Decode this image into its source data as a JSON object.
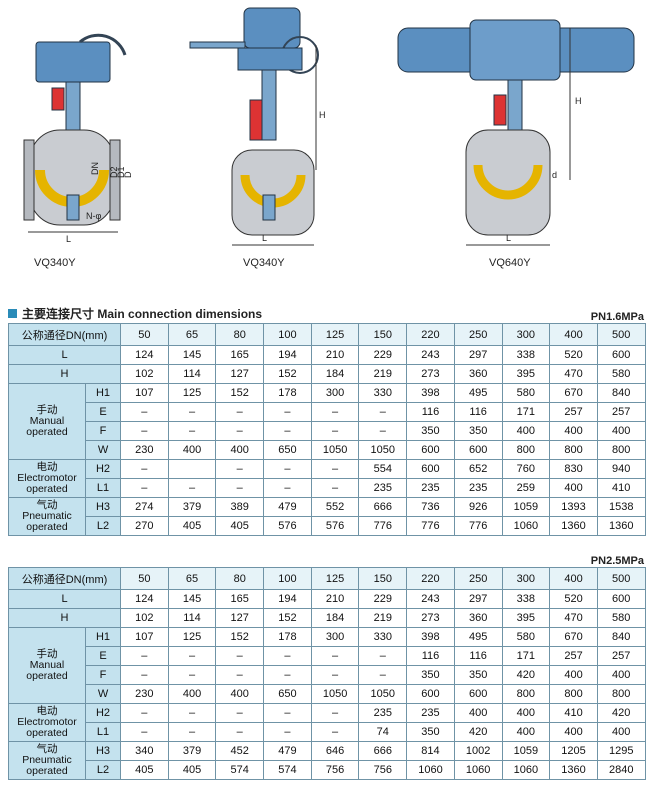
{
  "drawings": [
    {
      "caption": "VQ340Y",
      "labels": [
        "DN",
        "D2",
        "D1",
        "D",
        "L",
        "N-φ"
      ]
    },
    {
      "caption": "VQ340Y",
      "labels": [
        "H",
        "L"
      ]
    },
    {
      "caption": "VQ640Y",
      "labels": [
        "H",
        "d",
        "L"
      ]
    }
  ],
  "section": {
    "title_cn": "主要连接尺寸",
    "title_en": "Main connection dimensions"
  },
  "tables": [
    {
      "pressure": "PN1.6MPa",
      "header": "公称通径DN(mm)",
      "dn": [
        50,
        65,
        80,
        100,
        125,
        150,
        220,
        250,
        300,
        400,
        500
      ],
      "rows": [
        {
          "label": "L",
          "values": [
            124,
            145,
            165,
            194,
            210,
            229,
            243,
            297,
            338,
            520,
            600
          ]
        },
        {
          "label": "H",
          "values": [
            102,
            114,
            127,
            152,
            184,
            219,
            273,
            360,
            395,
            470,
            580
          ]
        }
      ],
      "groups": [
        {
          "label": [
            "手动",
            "Manual",
            "operated"
          ],
          "rows": [
            {
              "label": "H1",
              "values": [
                107,
                125,
                152,
                178,
                300,
                330,
                398,
                495,
                580,
                670,
                840
              ]
            },
            {
              "label": "E",
              "values": [
                "–",
                "–",
                "–",
                "–",
                "–",
                "–",
                116,
                116,
                171,
                257,
                257
              ]
            },
            {
              "label": "F",
              "values": [
                "–",
                "–",
                "–",
                "–",
                "–",
                "–",
                350,
                350,
                400,
                400,
                400
              ]
            },
            {
              "label": "W",
              "values": [
                230,
                400,
                400,
                650,
                1050,
                1050,
                600,
                600,
                800,
                800,
                800
              ]
            }
          ]
        },
        {
          "label": [
            "电动",
            "Electromotor",
            "operated"
          ],
          "rows": [
            {
              "label": "H2",
              "values": [
                "–",
                null,
                "–",
                "–",
                "–",
                554,
                600,
                652,
                760,
                830,
                940
              ]
            },
            {
              "label": "L1",
              "values": [
                "–",
                "–",
                "–",
                "–",
                "–",
                235,
                235,
                235,
                259,
                400,
                410
              ]
            }
          ]
        },
        {
          "label": [
            "气动",
            "Pneumatic",
            "operated"
          ],
          "rows": [
            {
              "label": "H3",
              "values": [
                274,
                379,
                389,
                479,
                552,
                666,
                736,
                926,
                1059,
                1393,
                1538
              ]
            },
            {
              "label": "L2",
              "values": [
                270,
                405,
                405,
                576,
                576,
                776,
                776,
                776,
                1060,
                1360,
                1360
              ]
            }
          ]
        }
      ]
    },
    {
      "pressure": "PN2.5MPa",
      "header": "公称通径DN(mm)",
      "dn": [
        50,
        65,
        80,
        100,
        125,
        150,
        220,
        250,
        300,
        400,
        500
      ],
      "rows": [
        {
          "label": "L",
          "values": [
            124,
            145,
            165,
            194,
            210,
            229,
            243,
            297,
            338,
            520,
            600
          ]
        },
        {
          "label": "H",
          "values": [
            102,
            114,
            127,
            152,
            184,
            219,
            273,
            360,
            395,
            470,
            580
          ]
        }
      ],
      "groups": [
        {
          "label": [
            "手动",
            "Manual",
            "operated"
          ],
          "rows": [
            {
              "label": "H1",
              "values": [
                107,
                125,
                152,
                178,
                300,
                330,
                398,
                495,
                580,
                670,
                840
              ]
            },
            {
              "label": "E",
              "values": [
                "–",
                "–",
                "–",
                "–",
                "–",
                "–",
                116,
                116,
                171,
                257,
                257
              ]
            },
            {
              "label": "F",
              "values": [
                "–",
                "–",
                "–",
                "–",
                "–",
                "–",
                350,
                350,
                420,
                400,
                400
              ]
            },
            {
              "label": "W",
              "values": [
                230,
                400,
                400,
                650,
                1050,
                1050,
                600,
                600,
                800,
                800,
                800
              ]
            }
          ]
        },
        {
          "label": [
            "电动",
            "Electromotor",
            "operated"
          ],
          "rows": [
            {
              "label": "H2",
              "values": [
                "–",
                "–",
                "–",
                "–",
                "–",
                235,
                235,
                400,
                400,
                410,
                420
              ]
            },
            {
              "label": "L1",
              "values": [
                "–",
                "–",
                "–",
                "–",
                "–",
                74,
                350,
                420,
                400,
                400,
                400
              ]
            }
          ]
        },
        {
          "label": [
            "气动",
            "Pneumatic",
            "operated"
          ],
          "rows": [
            {
              "label": "H3",
              "values": [
                340,
                379,
                452,
                479,
                646,
                666,
                814,
                1002,
                1059,
                1205,
                1295
              ]
            },
            {
              "label": "L2",
              "values": [
                405,
                405,
                574,
                574,
                756,
                756,
                1060,
                1060,
                1060,
                1360,
                2840
              ]
            }
          ]
        }
      ]
    }
  ]
}
